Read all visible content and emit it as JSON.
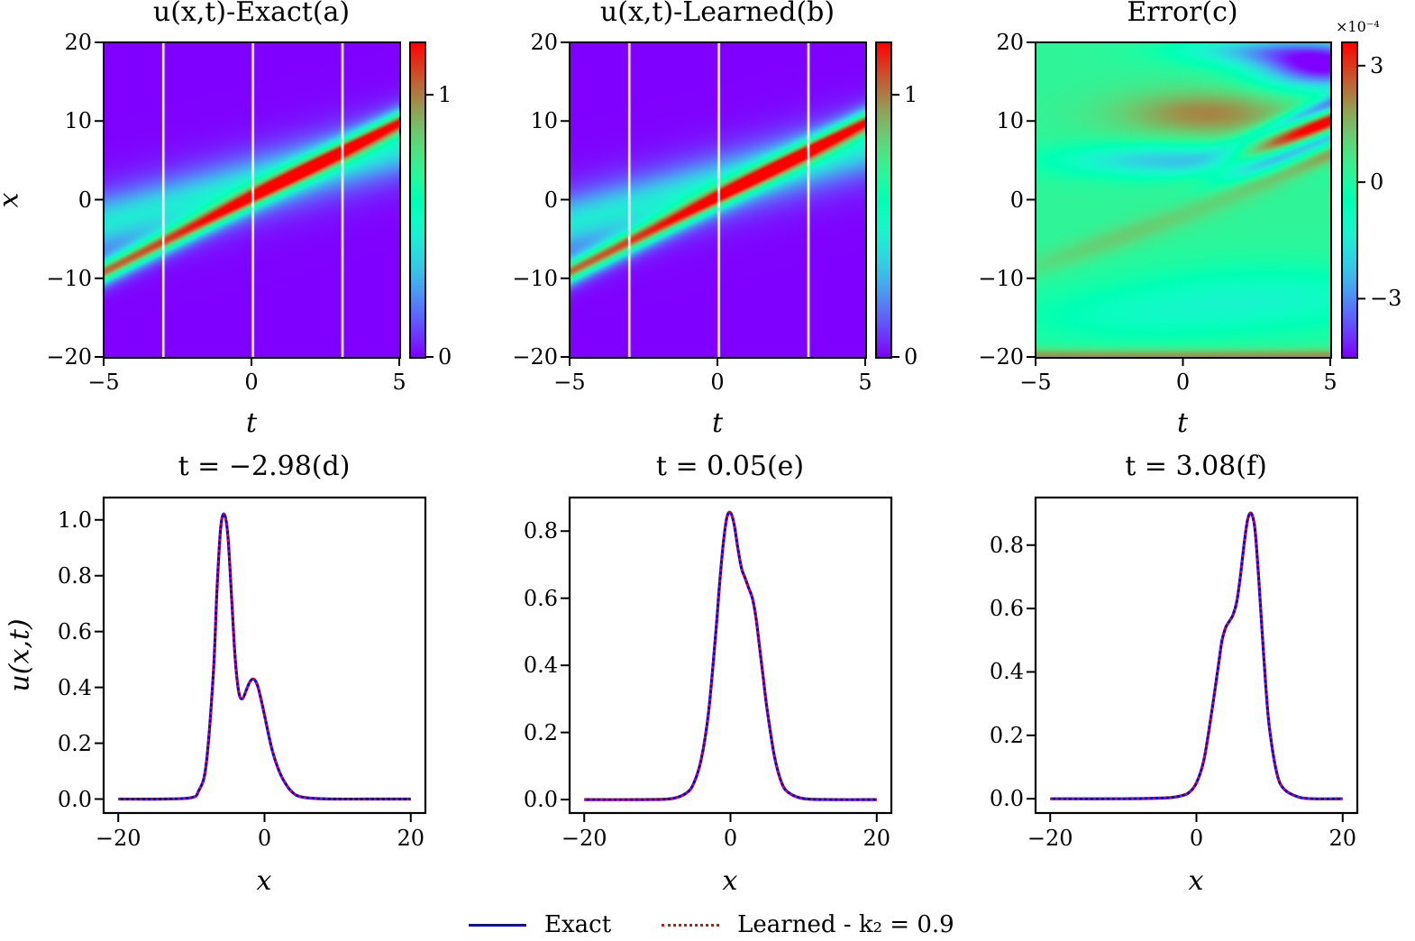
{
  "figure": {
    "legend": {
      "items": [
        {
          "label": "Exact",
          "color": "#0000ff",
          "style": "solid"
        },
        {
          "label": "Learned - k₂ = 0.9",
          "color": "#ff0000",
          "style": "dotted"
        }
      ]
    }
  },
  "chart_data": [
    {
      "id": "a",
      "type": "heatmap",
      "title": "u(x,t)-Exact(a)",
      "xlabel": "t",
      "ylabel": "x",
      "xlim": [
        -5,
        5
      ],
      "ylim": [
        -20,
        20
      ],
      "xticks": [
        "−5",
        "0",
        "5"
      ],
      "xtick_values": [
        -5,
        0,
        5
      ],
      "yticks": [
        "20",
        "10",
        "0",
        "−10",
        "−20"
      ],
      "ytick_values": [
        20,
        10,
        0,
        -10,
        -20
      ],
      "colormap": "rainbow",
      "colorbar": {
        "range": [
          0,
          1.2
        ],
        "ticks": [
          "1",
          "0"
        ],
        "tick_values": [
          1,
          0
        ]
      },
      "vertical_lines_t": [
        -2.98,
        0.05,
        3.08
      ],
      "vertical_line_color": "#ffffff",
      "field_description": "two-soliton interaction: sharp peak along x = 1.9t + 0.2 (amplitude ~1), broad wave along x = 1.0t + 1 (amplitude ~0.45)"
    },
    {
      "id": "b",
      "type": "heatmap",
      "title": "u(x,t)-Learned(b)",
      "xlabel": "t",
      "ylabel": "",
      "xlim": [
        -5,
        5
      ],
      "ylim": [
        -20,
        20
      ],
      "xticks": [
        "−5",
        "0",
        "5"
      ],
      "xtick_values": [
        -5,
        0,
        5
      ],
      "yticks": [
        "20",
        "10",
        "0",
        "−10",
        "−20"
      ],
      "ytick_values": [
        20,
        10,
        0,
        -10,
        -20
      ],
      "colormap": "rainbow",
      "colorbar": {
        "range": [
          0,
          1.2
        ],
        "ticks": [
          "1",
          "0"
        ],
        "tick_values": [
          1,
          0
        ]
      },
      "vertical_lines_t": [
        -2.98,
        0.05,
        3.08
      ],
      "vertical_line_color": "#ffffff"
    },
    {
      "id": "c",
      "type": "heatmap",
      "title": "Error(c)",
      "xlabel": "t",
      "ylabel": "",
      "xlim": [
        -5,
        5
      ],
      "ylim": [
        -20,
        20
      ],
      "xticks": [
        "−5",
        "0",
        "5"
      ],
      "xtick_values": [
        -5,
        0,
        5
      ],
      "yticks": [
        "20",
        "10",
        "0",
        "−10",
        "−20"
      ],
      "ytick_values": [
        20,
        10,
        0,
        -10,
        -20
      ],
      "colormap": "rainbow",
      "colorbar": {
        "range": [
          -4.5,
          3.6
        ],
        "ticks": [
          "3",
          "0",
          "−3"
        ],
        "tick_values": [
          3,
          0,
          -3
        ],
        "scale_label": "×10⁻⁴"
      },
      "features": [
        {
          "t": 0.8,
          "x": 11,
          "value": 2.0
        },
        {
          "t": 4.5,
          "x": 17,
          "value": -4.5
        },
        {
          "t": 4,
          "x": 8.5,
          "value": 3.5
        },
        {
          "t": -1,
          "x": 5,
          "value": -2.5
        },
        {
          "t": 3,
          "x": -12,
          "value": -1.5
        },
        {
          "t": 0,
          "x": -20,
          "value": 1.5
        }
      ]
    },
    {
      "id": "d",
      "type": "line",
      "title": "t = −2.98(d)",
      "xlabel": "x",
      "ylabel": "u(x,t)",
      "xlim": [
        -22,
        22
      ],
      "ylim": [
        -0.05,
        1.08
      ],
      "xticks": [
        "−20",
        "0",
        "20"
      ],
      "xtick_values": [
        -20,
        0,
        20
      ],
      "yticks": [
        "0.0",
        "0.2",
        "0.4",
        "0.6",
        "0.8",
        "1.0"
      ],
      "ytick_values": [
        0,
        0.2,
        0.4,
        0.6,
        0.8,
        1.0
      ],
      "series": [
        {
          "name": "Exact",
          "color": "#0000ff",
          "x": [
            -20,
            -14,
            -10,
            -9,
            -8,
            -7,
            -6.5,
            -6,
            -5.5,
            -5,
            -4.5,
            -4,
            -3.5,
            -3,
            -2.5,
            -2,
            -1.5,
            -1,
            -0.5,
            0,
            1,
            2,
            3,
            4,
            5,
            7,
            10,
            14,
            20
          ],
          "y": [
            0,
            0,
            0.005,
            0.03,
            0.12,
            0.45,
            0.75,
            0.97,
            1.02,
            0.94,
            0.72,
            0.5,
            0.38,
            0.36,
            0.39,
            0.42,
            0.43,
            0.41,
            0.36,
            0.3,
            0.18,
            0.1,
            0.05,
            0.02,
            0.008,
            0.002,
            0,
            0,
            0
          ]
        },
        {
          "name": "Learned - k₂ = 0.9",
          "color": "#ff0000",
          "x": [
            -20,
            -14,
            -10,
            -9,
            -8,
            -7,
            -6.5,
            -6,
            -5.5,
            -5,
            -4.5,
            -4,
            -3.5,
            -3,
            -2.5,
            -2,
            -1.5,
            -1,
            -0.5,
            0,
            1,
            2,
            3,
            4,
            5,
            7,
            10,
            14,
            20
          ],
          "y": [
            0,
            0,
            0.005,
            0.03,
            0.12,
            0.45,
            0.75,
            0.97,
            1.02,
            0.94,
            0.72,
            0.5,
            0.38,
            0.36,
            0.39,
            0.42,
            0.43,
            0.41,
            0.36,
            0.3,
            0.18,
            0.1,
            0.05,
            0.02,
            0.008,
            0.002,
            0,
            0,
            0
          ]
        }
      ]
    },
    {
      "id": "e",
      "type": "line",
      "title": "t = 0.05(e)",
      "xlabel": "x",
      "ylabel": "",
      "xlim": [
        -22,
        22
      ],
      "ylim": [
        -0.04,
        0.9
      ],
      "xticks": [
        "−20",
        "0",
        "20"
      ],
      "xtick_values": [
        -20,
        0,
        20
      ],
      "yticks": [
        "0.0",
        "0.2",
        "0.4",
        "0.6",
        "0.8"
      ],
      "ytick_values": [
        0,
        0.2,
        0.4,
        0.6,
        0.8
      ],
      "series": [
        {
          "name": "Exact",
          "color": "#0000ff",
          "x": [
            -20,
            -12,
            -8,
            -6,
            -5,
            -4,
            -3,
            -2,
            -1.5,
            -1,
            -0.5,
            0,
            0.5,
            1,
            1.5,
            2,
            2.5,
            3,
            3.5,
            4,
            4.5,
            5,
            6,
            7,
            8,
            10,
            14,
            20
          ],
          "y": [
            0,
            0,
            0.003,
            0.02,
            0.05,
            0.12,
            0.26,
            0.5,
            0.64,
            0.76,
            0.84,
            0.855,
            0.82,
            0.75,
            0.69,
            0.66,
            0.63,
            0.6,
            0.54,
            0.45,
            0.36,
            0.27,
            0.13,
            0.05,
            0.02,
            0.003,
            0,
            0
          ]
        },
        {
          "name": "Learned - k₂ = 0.9",
          "color": "#ff0000",
          "x": [
            -20,
            -12,
            -8,
            -6,
            -5,
            -4,
            -3,
            -2,
            -1.5,
            -1,
            -0.5,
            0,
            0.5,
            1,
            1.5,
            2,
            2.5,
            3,
            3.5,
            4,
            4.5,
            5,
            6,
            7,
            8,
            10,
            14,
            20
          ],
          "y": [
            0,
            0,
            0.003,
            0.02,
            0.05,
            0.12,
            0.26,
            0.5,
            0.64,
            0.76,
            0.84,
            0.855,
            0.82,
            0.75,
            0.69,
            0.66,
            0.63,
            0.6,
            0.54,
            0.45,
            0.36,
            0.27,
            0.13,
            0.05,
            0.02,
            0.003,
            0,
            0
          ]
        }
      ]
    },
    {
      "id": "f",
      "type": "line",
      "title": "t = 3.08(f)",
      "xlabel": "x",
      "ylabel": "",
      "xlim": [
        -22,
        22
      ],
      "ylim": [
        -0.045,
        0.95
      ],
      "xticks": [
        "−20",
        "0",
        "20"
      ],
      "xtick_values": [
        -20,
        0,
        20
      ],
      "yticks": [
        "0.0",
        "0.2",
        "0.4",
        "0.6",
        "0.8"
      ],
      "ytick_values": [
        0,
        0.2,
        0.4,
        0.6,
        0.8
      ],
      "series": [
        {
          "name": "Exact",
          "color": "#0000ff",
          "x": [
            -20,
            -10,
            -4,
            -2,
            -1,
            0,
            1,
            2,
            3,
            3.5,
            4,
            4.5,
            5,
            5.5,
            6,
            6.5,
            7,
            7.5,
            8,
            8.5,
            9,
            9.5,
            10,
            11,
            12,
            14,
            16,
            20
          ],
          "y": [
            0,
            0,
            0.003,
            0.01,
            0.02,
            0.05,
            0.12,
            0.26,
            0.42,
            0.5,
            0.54,
            0.56,
            0.58,
            0.62,
            0.7,
            0.8,
            0.88,
            0.9,
            0.85,
            0.7,
            0.52,
            0.35,
            0.22,
            0.08,
            0.03,
            0.005,
            0,
            0
          ]
        },
        {
          "name": "Learned - k₂ = 0.9",
          "color": "#ff0000",
          "x": [
            -20,
            -10,
            -4,
            -2,
            -1,
            0,
            1,
            2,
            3,
            3.5,
            4,
            4.5,
            5,
            5.5,
            6,
            6.5,
            7,
            7.5,
            8,
            8.5,
            9,
            9.5,
            10,
            11,
            12,
            14,
            16,
            20
          ],
          "y": [
            0,
            0,
            0.003,
            0.01,
            0.02,
            0.05,
            0.12,
            0.26,
            0.42,
            0.5,
            0.54,
            0.56,
            0.58,
            0.62,
            0.7,
            0.8,
            0.88,
            0.9,
            0.85,
            0.7,
            0.52,
            0.35,
            0.22,
            0.08,
            0.03,
            0.005,
            0,
            0
          ]
        }
      ]
    }
  ]
}
